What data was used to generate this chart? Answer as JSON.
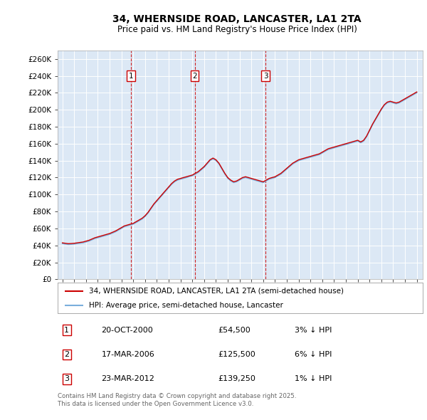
{
  "title": "34, WHERNSIDE ROAD, LANCASTER, LA1 2TA",
  "subtitle": "Price paid vs. HM Land Registry's House Price Index (HPI)",
  "ylim": [
    0,
    270000
  ],
  "yticks": [
    0,
    20000,
    40000,
    60000,
    80000,
    100000,
    120000,
    140000,
    160000,
    180000,
    200000,
    220000,
    240000,
    260000
  ],
  "xlim_start": 1994.6,
  "xlim_end": 2025.5,
  "background_color": "#dce8f5",
  "grid_color": "#ffffff",
  "transactions": [
    {
      "label": "1",
      "year": 2000.8,
      "price": 54500,
      "date": "20-OCT-2000",
      "percent": "3%",
      "direction": "↓"
    },
    {
      "label": "2",
      "year": 2006.2,
      "price": 125500,
      "date": "17-MAR-2006",
      "percent": "6%",
      "direction": "↓"
    },
    {
      "label": "3",
      "year": 2012.2,
      "price": 139250,
      "date": "23-MAR-2012",
      "percent": "1%",
      "direction": "↓"
    }
  ],
  "legend_line1": "34, WHERNSIDE ROAD, LANCASTER, LA1 2TA (semi-detached house)",
  "legend_line2": "HPI: Average price, semi-detached house, Lancaster",
  "footnote": "Contains HM Land Registry data © Crown copyright and database right 2025.\nThis data is licensed under the Open Government Licence v3.0.",
  "red_line_color": "#cc0000",
  "blue_line_color": "#7aaedc",
  "marker_box_color": "#cc0000",
  "dashed_line_color": "#cc0000",
  "hpi_data_x": [
    1995.0,
    1995.25,
    1995.5,
    1995.75,
    1996.0,
    1996.25,
    1996.5,
    1996.75,
    1997.0,
    1997.25,
    1997.5,
    1997.75,
    1998.0,
    1998.25,
    1998.5,
    1998.75,
    1999.0,
    1999.25,
    1999.5,
    1999.75,
    2000.0,
    2000.25,
    2000.5,
    2000.75,
    2001.0,
    2001.25,
    2001.5,
    2001.75,
    2002.0,
    2002.25,
    2002.5,
    2002.75,
    2003.0,
    2003.25,
    2003.5,
    2003.75,
    2004.0,
    2004.25,
    2004.5,
    2004.75,
    2005.0,
    2005.25,
    2005.5,
    2005.75,
    2006.0,
    2006.25,
    2006.5,
    2006.75,
    2007.0,
    2007.25,
    2007.5,
    2007.75,
    2008.0,
    2008.25,
    2008.5,
    2008.75,
    2009.0,
    2009.25,
    2009.5,
    2009.75,
    2010.0,
    2010.25,
    2010.5,
    2010.75,
    2011.0,
    2011.25,
    2011.5,
    2011.75,
    2012.0,
    2012.25,
    2012.5,
    2012.75,
    2013.0,
    2013.25,
    2013.5,
    2013.75,
    2014.0,
    2014.25,
    2014.5,
    2014.75,
    2015.0,
    2015.25,
    2015.5,
    2015.75,
    2016.0,
    2016.25,
    2016.5,
    2016.75,
    2017.0,
    2017.25,
    2017.5,
    2017.75,
    2018.0,
    2018.25,
    2018.5,
    2018.75,
    2019.0,
    2019.25,
    2019.5,
    2019.75,
    2020.0,
    2020.25,
    2020.5,
    2020.75,
    2021.0,
    2021.25,
    2021.5,
    2021.75,
    2022.0,
    2022.25,
    2022.5,
    2022.75,
    2023.0,
    2023.25,
    2023.5,
    2023.75,
    2024.0,
    2024.25,
    2024.5,
    2024.75,
    2025.0
  ],
  "hpi_data_y": [
    42000,
    41500,
    41000,
    41200,
    41500,
    42000,
    42500,
    43000,
    44000,
    45000,
    46500,
    48000,
    49000,
    50000,
    51000,
    52000,
    53000,
    54500,
    56000,
    58000,
    60000,
    62000,
    63000,
    64000,
    65000,
    67000,
    69000,
    71000,
    74000,
    78000,
    83000,
    88000,
    92000,
    96000,
    100000,
    104000,
    108000,
    112000,
    115000,
    117000,
    118000,
    119000,
    120000,
    121000,
    122000,
    124000,
    126000,
    129000,
    132000,
    136000,
    140000,
    142000,
    140000,
    136000,
    130000,
    124000,
    119000,
    116000,
    114000,
    115000,
    117000,
    119000,
    120000,
    119000,
    118000,
    117000,
    116000,
    115000,
    114000,
    116000,
    118000,
    119000,
    120000,
    122000,
    124000,
    127000,
    130000,
    133000,
    136000,
    138000,
    140000,
    141000,
    142000,
    143000,
    144000,
    145000,
    146000,
    147000,
    149000,
    151000,
    153000,
    154000,
    155000,
    156000,
    157000,
    158000,
    159000,
    160000,
    161000,
    162000,
    163000,
    161000,
    163000,
    168000,
    175000,
    182000,
    188000,
    194000,
    200000,
    205000,
    208000,
    209000,
    208000,
    207000,
    208000,
    210000,
    212000,
    214000,
    216000,
    218000,
    220000
  ],
  "price_paid_data_x": [
    1995.0,
    1995.25,
    1995.5,
    1995.75,
    1996.0,
    1996.25,
    1996.5,
    1996.75,
    1997.0,
    1997.25,
    1997.5,
    1997.75,
    1998.0,
    1998.25,
    1998.5,
    1998.75,
    1999.0,
    1999.25,
    1999.5,
    1999.75,
    2000.0,
    2000.25,
    2000.5,
    2000.75,
    2001.0,
    2001.25,
    2001.5,
    2001.75,
    2002.0,
    2002.25,
    2002.5,
    2002.75,
    2003.0,
    2003.25,
    2003.5,
    2003.75,
    2004.0,
    2004.25,
    2004.5,
    2004.75,
    2005.0,
    2005.25,
    2005.5,
    2005.75,
    2006.0,
    2006.25,
    2006.5,
    2006.75,
    2007.0,
    2007.25,
    2007.5,
    2007.75,
    2008.0,
    2008.25,
    2008.5,
    2008.75,
    2009.0,
    2009.25,
    2009.5,
    2009.75,
    2010.0,
    2010.25,
    2010.5,
    2010.75,
    2011.0,
    2011.25,
    2011.5,
    2011.75,
    2012.0,
    2012.25,
    2012.5,
    2012.75,
    2013.0,
    2013.25,
    2013.5,
    2013.75,
    2014.0,
    2014.25,
    2014.5,
    2014.75,
    2015.0,
    2015.25,
    2015.5,
    2015.75,
    2016.0,
    2016.25,
    2016.5,
    2016.75,
    2017.0,
    2017.25,
    2017.5,
    2017.75,
    2018.0,
    2018.25,
    2018.5,
    2018.75,
    2019.0,
    2019.25,
    2019.5,
    2019.75,
    2020.0,
    2020.25,
    2020.5,
    2020.75,
    2021.0,
    2021.25,
    2021.5,
    2021.75,
    2022.0,
    2022.25,
    2022.5,
    2022.75,
    2023.0,
    2023.25,
    2023.5,
    2023.75,
    2024.0,
    2024.25,
    2024.5,
    2024.75,
    2025.0
  ],
  "price_paid_data_y": [
    43000,
    42500,
    42000,
    42200,
    42500,
    43000,
    43500,
    44000,
    45000,
    46000,
    47500,
    49000,
    50000,
    51000,
    52000,
    53000,
    54000,
    55500,
    57000,
    59000,
    61000,
    63000,
    64000,
    65000,
    66000,
    68000,
    70000,
    72000,
    75000,
    79000,
    84000,
    89000,
    93000,
    97000,
    101000,
    105000,
    109000,
    113000,
    116000,
    118000,
    119000,
    120000,
    121000,
    122000,
    123000,
    125000,
    127000,
    130000,
    133000,
    137000,
    141000,
    143000,
    141000,
    137000,
    131000,
    125000,
    120000,
    117000,
    115000,
    116000,
    118000,
    120000,
    121000,
    120000,
    119000,
    118000,
    117000,
    116000,
    115000,
    117000,
    119000,
    120000,
    121000,
    123000,
    125000,
    128000,
    131000,
    134000,
    137000,
    139000,
    141000,
    142000,
    143000,
    144000,
    145000,
    146000,
    147000,
    148000,
    150000,
    152000,
    154000,
    155000,
    156000,
    157000,
    158000,
    159000,
    160000,
    161000,
    162000,
    163000,
    164000,
    162000,
    164000,
    169000,
    176000,
    183000,
    189000,
    195000,
    201000,
    206000,
    209000,
    210000,
    209000,
    208000,
    209000,
    211000,
    213000,
    215000,
    217000,
    219000,
    221000
  ]
}
